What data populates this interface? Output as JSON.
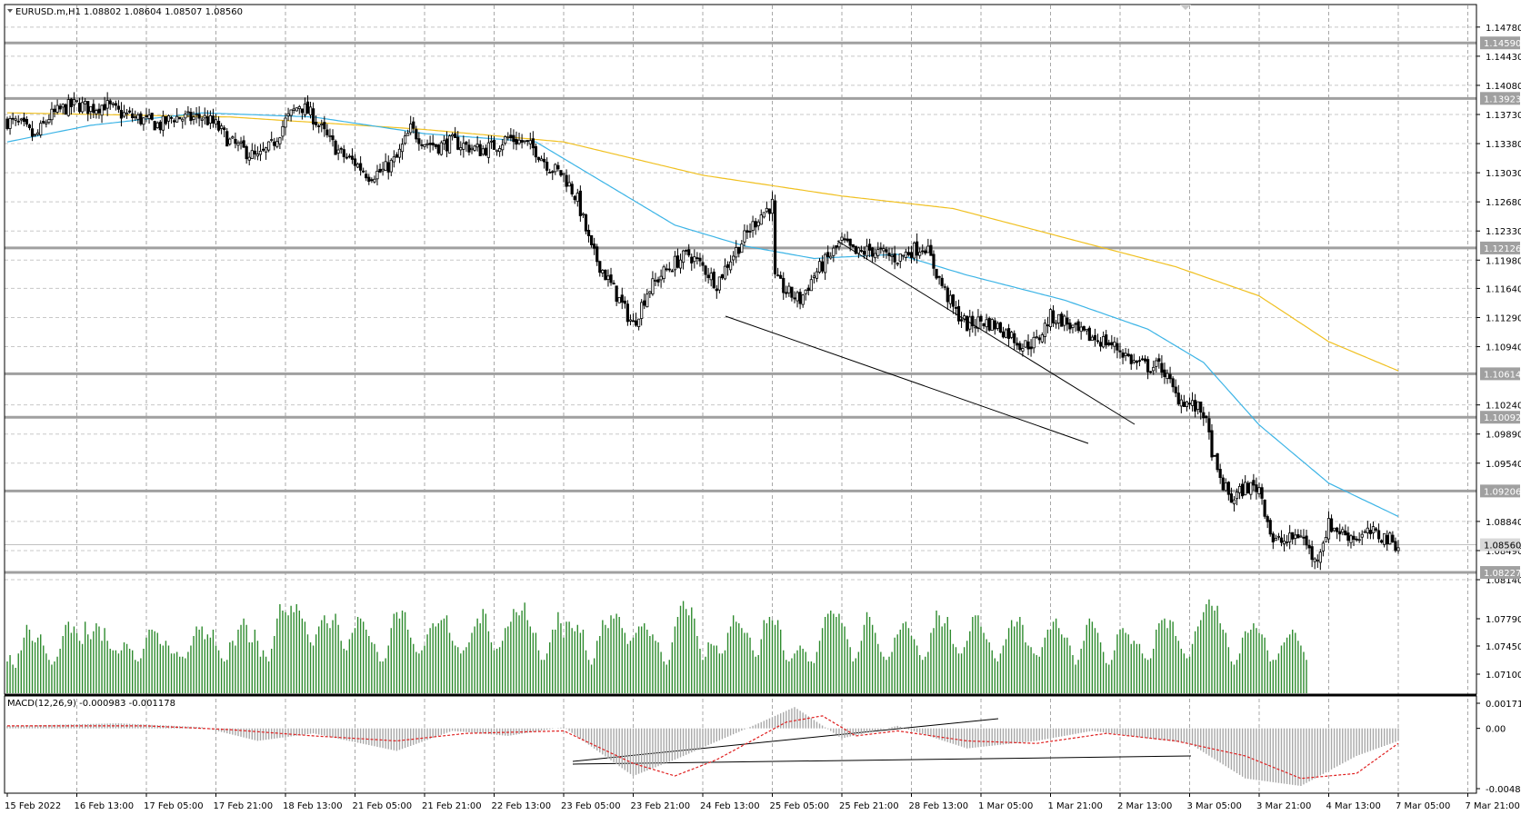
{
  "header": {
    "title": "EURUSD.m,H1",
    "ohlc": "1.08802 1.08604 1.08507 1.08560"
  },
  "macd_header": "MACD(12,26,9) -0.000983 -0.001178",
  "chart_data": {
    "type": "candlestick",
    "symbol": "EURUSD.m",
    "timeframe": "H1",
    "y_ticks": [
      "1.14780",
      "1.14430",
      "1.14080",
      "1.13730",
      "1.13380",
      "1.13030",
      "1.12680",
      "1.12330",
      "1.11980",
      "1.11640",
      "1.11290",
      "1.10940",
      "1.10240",
      "1.09890",
      "1.09540",
      "1.08840",
      "1.08490",
      "1.08140",
      "1.07790",
      "1.07450",
      "1.07100"
    ],
    "x_ticks": [
      "15 Feb 2022",
      "16 Feb 13:00",
      "17 Feb 05:00",
      "17 Feb 21:00",
      "18 Feb 13:00",
      "21 Feb 05:00",
      "21 Feb 21:00",
      "22 Feb 13:00",
      "23 Feb 05:00",
      "23 Feb 21:00",
      "24 Feb 13:00",
      "25 Feb 05:00",
      "25 Feb 21:00",
      "28 Feb 13:00",
      "1 Mar 05:00",
      "1 Mar 21:00",
      "2 Mar 13:00",
      "3 Mar 05:00",
      "3 Mar 21:00",
      "4 Mar 13:00",
      "7 Mar 05:00",
      "7 Mar 21:00"
    ],
    "levels": [
      {
        "label": "1.14590",
        "value": 1.1459
      },
      {
        "label": "1.13923",
        "value": 1.13923
      },
      {
        "label": "1.12126",
        "value": 1.12126
      },
      {
        "label": "1.10614",
        "value": 1.10614
      },
      {
        "label": "1.10092",
        "value": 1.10092
      },
      {
        "label": "1.09206",
        "value": 1.09206
      },
      {
        "label": "1.08227",
        "value": 1.08227
      }
    ],
    "current_price": {
      "label": "1.08560",
      "value": 1.0856
    },
    "close_anchors": [
      [
        0,
        1.1365
      ],
      [
        5,
        1.136
      ],
      [
        10,
        1.1345
      ],
      [
        15,
        1.137
      ],
      [
        20,
        1.138
      ],
      [
        25,
        1.1385
      ],
      [
        30,
        1.138
      ],
      [
        35,
        1.1385
      ],
      [
        40,
        1.1375
      ],
      [
        45,
        1.137
      ],
      [
        50,
        1.1365
      ],
      [
        55,
        1.136
      ],
      [
        60,
        1.137
      ],
      [
        65,
        1.1368
      ],
      [
        70,
        1.137
      ],
      [
        75,
        1.136
      ],
      [
        80,
        1.134
      ],
      [
        85,
        1.133
      ],
      [
        90,
        1.132
      ],
      [
        95,
        1.1335
      ],
      [
        100,
        1.1365
      ],
      [
        105,
        1.1385
      ],
      [
        110,
        1.137
      ],
      [
        115,
        1.1345
      ],
      [
        120,
        1.1325
      ],
      [
        125,
        1.1315
      ],
      [
        130,
        1.13
      ],
      [
        135,
        1.1305
      ],
      [
        140,
        1.132
      ],
      [
        145,
        1.1355
      ],
      [
        150,
        1.134
      ],
      [
        155,
        1.1335
      ],
      [
        160,
        1.134
      ],
      [
        165,
        1.1335
      ],
      [
        170,
        1.133
      ],
      [
        175,
        1.1335
      ],
      [
        180,
        1.1345
      ],
      [
        185,
        1.134
      ],
      [
        190,
        1.133
      ],
      [
        195,
        1.131
      ],
      [
        200,
        1.13
      ],
      [
        205,
        1.127
      ],
      [
        210,
        1.121
      ],
      [
        215,
        1.118
      ],
      [
        220,
        1.115
      ],
      [
        225,
        1.112
      ],
      [
        230,
        1.116
      ],
      [
        235,
        1.118
      ],
      [
        240,
        1.1195
      ],
      [
        245,
        1.1205
      ],
      [
        250,
        1.119
      ],
      [
        255,
        1.117
      ],
      [
        260,
        1.12
      ],
      [
        265,
        1.1225
      ],
      [
        270,
        1.125
      ],
      [
        275,
        1.1265
      ],
      [
        276,
        1.1175
      ],
      [
        280,
        1.116
      ],
      [
        285,
        1.115
      ],
      [
        290,
        1.118
      ],
      [
        295,
        1.12
      ],
      [
        300,
        1.122
      ],
      [
        305,
        1.1205
      ],
      [
        310,
        1.121
      ],
      [
        315,
        1.1205
      ],
      [
        320,
        1.12
      ],
      [
        325,
        1.121
      ],
      [
        330,
        1.1215
      ],
      [
        335,
        1.1175
      ],
      [
        340,
        1.114
      ],
      [
        345,
        1.112
      ],
      [
        350,
        1.1125
      ],
      [
        355,
        1.112
      ],
      [
        360,
        1.111
      ],
      [
        365,
        1.1095
      ],
      [
        370,
        1.11
      ],
      [
        375,
        1.113
      ],
      [
        380,
        1.1125
      ],
      [
        385,
        1.111
      ],
      [
        390,
        1.1105
      ],
      [
        395,
        1.11
      ],
      [
        400,
        1.109
      ],
      [
        405,
        1.1075
      ],
      [
        410,
        1.107
      ],
      [
        415,
        1.107
      ],
      [
        420,
        1.1035
      ],
      [
        425,
        1.1025
      ],
      [
        430,
        1.1015
      ],
      [
        435,
        1.094
      ],
      [
        440,
        1.091
      ],
      [
        445,
        1.0925
      ],
      [
        450,
        1.0925
      ],
      [
        455,
        1.086
      ],
      [
        460,
        1.086
      ],
      [
        465,
        1.087
      ],
      [
        470,
        1.0835
      ],
      [
        475,
        1.088
      ],
      [
        480,
        1.087
      ],
      [
        485,
        1.0865
      ],
      [
        490,
        1.087
      ],
      [
        495,
        1.0865
      ],
      [
        500,
        1.0856
      ]
    ],
    "volume_bars": [
      20,
      24,
      18,
      16,
      25,
      27,
      35,
      43,
      40,
      33,
      32,
      35,
      37,
      30,
      25,
      21,
      18,
      20,
      23,
      28,
      36,
      43,
      45,
      38,
      42,
      38,
      33,
      31,
      45,
      37,
      34,
      39,
      44,
      42,
      33,
      41,
      33,
      28,
      27,
      27,
      25,
      27,
      32,
      31,
      28,
      27,
      21,
      20,
      22,
      28,
      35,
      40,
      40,
      39,
      38,
      31,
      30,
      33,
      30,
      25,
      25,
      26,
      23,
      23,
      22,
      26,
      30,
      36,
      42,
      40,
      42,
      34,
      37,
      35,
      40,
      30,
      27,
      22,
      20,
      21,
      32,
      33,
      30,
      40,
      43,
      47,
      43,
      32,
      32,
      40,
      33,
      23,
      27,
      23,
      20,
      28,
      36,
      47,
      56,
      52,
      51,
      49,
      55,
      51,
      56,
      52,
      47,
      45,
      37,
      32,
      30,
      37,
      42,
      46,
      49,
      44,
      41,
      46,
      50,
      43,
      33,
      28,
      27,
      34,
      38,
      41,
      48,
      47,
      45,
      40,
      36,
      32,
      31,
      26,
      20,
      20,
      22,
      30,
      41,
      50,
      51,
      47,
      52,
      51,
      40,
      35,
      31,
      26,
      25,
      27,
      30,
      37,
      41,
      44,
      42,
      44,
      46,
      47,
      49,
      38,
      33,
      30,
      29,
      25,
      27,
      29,
      32,
      38,
      42,
      47,
      44,
      53,
      50,
      39,
      32,
      27,
      28,
      29,
      33,
      41,
      42,
      45,
      53,
      51,
      49,
      52,
      57,
      46,
      42,
      38,
      38,
      27,
      21,
      21,
      25,
      32,
      40,
      40,
      51,
      44,
      35,
      45,
      45,
      41,
      39,
      43,
      38,
      40,
      27,
      21,
      18,
      22,
      33,
      36,
      46,
      43,
      41,
      49,
      47,
      50,
      48,
      41,
      38,
      31,
      33,
      35,
      38,
      42,
      42,
      44,
      40,
      36,
      37,
      33,
      32,
      26,
      20,
      18,
      21,
      32,
      42,
      48,
      55,
      58,
      53,
      49,
      54,
      47,
      36,
      28,
      21,
      23,
      32,
      31,
      30,
      30,
      25,
      25,
      27,
      38,
      42,
      49,
      45,
      44,
      41,
      38,
      38,
      35,
      27,
      23,
      24,
      34,
      46,
      44,
      48,
      46,
      43,
      46,
      40,
      27,
      21,
      20,
      22,
      25,
      27,
      30,
      28,
      26,
      20,
      20,
      19,
      26,
      33,
      41,
      48,
      50,
      52,
      50,
      48,
      50,
      44,
      42,
      34,
      29,
      20,
      22,
      26,
      33,
      43,
      51,
      48,
      43,
      38,
      31,
      26,
      23,
      21,
      23,
      26,
      35,
      37,
      40,
      44,
      45,
      41,
      36,
      34,
      30,
      24,
      21,
      23,
      26,
      38,
      41,
      52,
      49,
      42,
      44,
      48,
      40,
      31,
      29,
      25,
      25,
      29,
      33,
      39,
      48,
      49,
      49,
      42,
      38,
      34,
      32,
      27,
      22,
      20,
      25,
      30,
      34,
      41,
      46,
      42,
      45,
      48,
      43,
      32,
      30,
      29,
      25,
      24,
      23,
      29,
      35,
      40,
      40,
      45,
      47,
      41,
      37,
      35,
      35,
      30,
      24,
      18,
      21,
      28,
      33,
      43,
      47,
      45,
      41,
      38,
      32,
      26,
      19,
      18,
      21,
      27,
      37,
      40,
      41,
      38,
      37,
      31,
      33,
      31,
      31,
      25,
      22,
      21,
      22,
      28,
      40,
      44,
      46,
      47,
      41,
      46,
      45,
      36,
      33,
      28,
      25,
      22,
      23,
      31,
      39,
      42,
      46,
      51,
      56,
      59,
      55,
      52,
      55,
      44,
      40,
      38,
      29,
      20,
      18,
      21,
      25,
      35,
      39,
      38,
      40,
      44,
      41,
      38,
      37,
      35,
      27,
      20,
      21,
      21,
      25,
      30,
      32,
      35,
      37,
      40,
      38,
      33,
      30,
      26,
      21
    ],
    "ma_fast_anchors": [
      [
        0,
        1.134
      ],
      [
        30,
        1.136
      ],
      [
        70,
        1.1375
      ],
      [
        110,
        1.137
      ],
      [
        150,
        1.135
      ],
      [
        190,
        1.134
      ],
      [
        215,
        1.129
      ],
      [
        240,
        1.124
      ],
      [
        265,
        1.1215
      ],
      [
        290,
        1.12
      ],
      [
        320,
        1.1205
      ],
      [
        345,
        1.118
      ],
      [
        380,
        1.115
      ],
      [
        410,
        1.1115
      ],
      [
        430,
        1.1075
      ],
      [
        450,
        1.1
      ],
      [
        475,
        1.093
      ],
      [
        500,
        1.089
      ]
    ],
    "ma_slow_anchors": [
      [
        0,
        1.1375
      ],
      [
        80,
        1.137
      ],
      [
        150,
        1.1355
      ],
      [
        200,
        1.134
      ],
      [
        250,
        1.13
      ],
      [
        300,
        1.1275
      ],
      [
        340,
        1.126
      ],
      [
        380,
        1.1225
      ],
      [
        420,
        1.119
      ],
      [
        450,
        1.1155
      ],
      [
        475,
        1.11
      ],
      [
        500,
        1.1065
      ]
    ],
    "macd_ticks": [
      "0.001717",
      "0.00",
      "-0.004815"
    ],
    "macd_hist_anchors": [
      [
        0,
        0.0002
      ],
      [
        40,
        0.0004
      ],
      [
        70,
        0.0001
      ],
      [
        90,
        -0.001
      ],
      [
        110,
        -0.0004
      ],
      [
        140,
        -0.0018
      ],
      [
        160,
        -0.0002
      ],
      [
        180,
        -0.0006
      ],
      [
        200,
        0.0001
      ],
      [
        225,
        -0.0038
      ],
      [
        240,
        -0.0025
      ],
      [
        270,
        0.0004
      ],
      [
        283,
        0.0017
      ],
      [
        300,
        -0.0008
      ],
      [
        320,
        0.0002
      ],
      [
        345,
        -0.0016
      ],
      [
        370,
        -0.001
      ],
      [
        390,
        -0.0002
      ],
      [
        410,
        -0.0008
      ],
      [
        425,
        -0.0012
      ],
      [
        445,
        -0.004
      ],
      [
        465,
        -0.0046
      ],
      [
        485,
        -0.0022
      ],
      [
        500,
        -0.001
      ]
    ],
    "macd_signal_anchors": [
      [
        0,
        0.0002
      ],
      [
        50,
        0.0002
      ],
      [
        80,
        -0.0001
      ],
      [
        110,
        -0.0006
      ],
      [
        140,
        -0.001
      ],
      [
        165,
        -0.0004
      ],
      [
        200,
        -0.0002
      ],
      [
        225,
        -0.0028
      ],
      [
        240,
        -0.0038
      ],
      [
        255,
        -0.0025
      ],
      [
        280,
        0.0005
      ],
      [
        293,
        0.001
      ],
      [
        305,
        -0.0006
      ],
      [
        320,
        -0.0002
      ],
      [
        345,
        -0.001
      ],
      [
        370,
        -0.0012
      ],
      [
        395,
        -0.0004
      ],
      [
        420,
        -0.001
      ],
      [
        445,
        -0.0022
      ],
      [
        465,
        -0.004
      ],
      [
        485,
        -0.0036
      ],
      [
        500,
        -0.0012
      ]
    ]
  }
}
